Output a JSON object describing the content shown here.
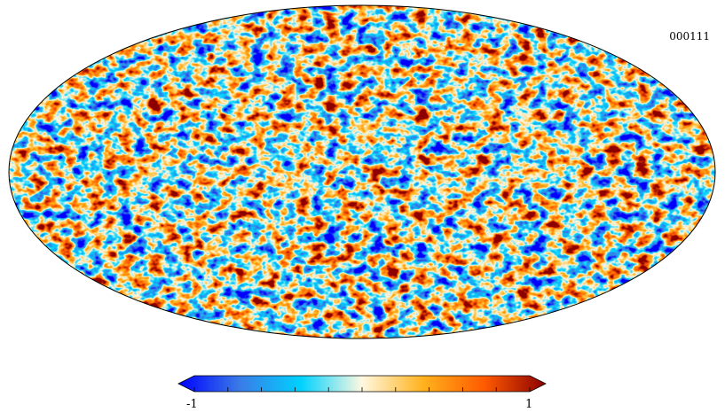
{
  "map": {
    "label": "000111",
    "projection": "mollweide",
    "field": "random-gaussian"
  },
  "colorbar": {
    "min_label": "-1",
    "max_label": "1",
    "min": -1,
    "max": 1,
    "tick_count": 11,
    "colormap": [
      "#0000ff",
      "#3a7be6",
      "#00d2ff",
      "#fff8e0",
      "#ffb21d",
      "#ff5a00",
      "#8b0000"
    ]
  }
}
